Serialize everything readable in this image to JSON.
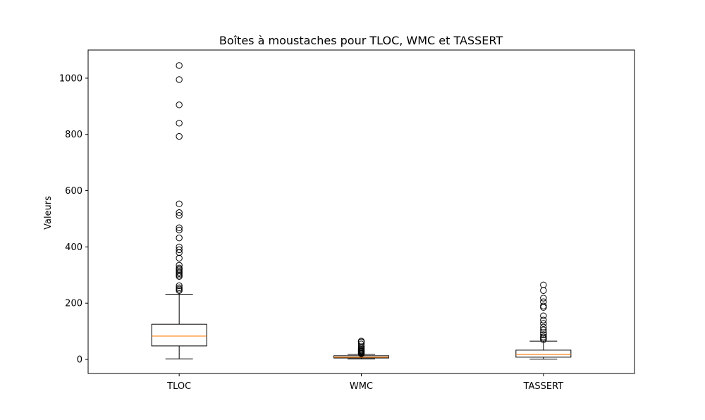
{
  "chart_data": {
    "type": "box",
    "title": "Boîtes à moustaches pour TLOC, WMC et TASSERT",
    "xlabel": "",
    "ylabel": "Valeurs",
    "ylim": [
      -50,
      1100
    ],
    "yticks": [
      0,
      200,
      400,
      600,
      800,
      1000
    ],
    "grid": false,
    "categories": [
      "TLOC",
      "WMC",
      "TASSERT"
    ],
    "boxes": [
      {
        "name": "TLOC",
        "whisker_low": 2,
        "q1": 48,
        "median": 83,
        "q3": 125,
        "whisker_high": 232,
        "outliers": [
          245,
          250,
          255,
          262,
          295,
          300,
          305,
          310,
          315,
          320,
          325,
          335,
          360,
          380,
          390,
          400,
          432,
          460,
          468,
          512,
          522,
          553,
          793,
          840,
          905,
          995,
          1045
        ]
      },
      {
        "name": "WMC",
        "whisker_low": 2,
        "q1": 5,
        "median": 8,
        "q3": 13,
        "whisker_high": 18,
        "outliers": [
          20,
          22,
          25,
          28,
          30,
          33,
          36,
          40,
          45,
          55,
          62,
          65
        ]
      },
      {
        "name": "TASSERT",
        "whisker_low": 1,
        "q1": 8,
        "median": 18,
        "q3": 33,
        "whisker_high": 65,
        "outliers": [
          70,
          75,
          80,
          88,
          95,
          105,
          115,
          128,
          140,
          155,
          185,
          190,
          205,
          218,
          245,
          265
        ]
      }
    ],
    "colors": {
      "box": "#000000",
      "median": "#ff7f0e",
      "outlier": "#000000"
    }
  }
}
